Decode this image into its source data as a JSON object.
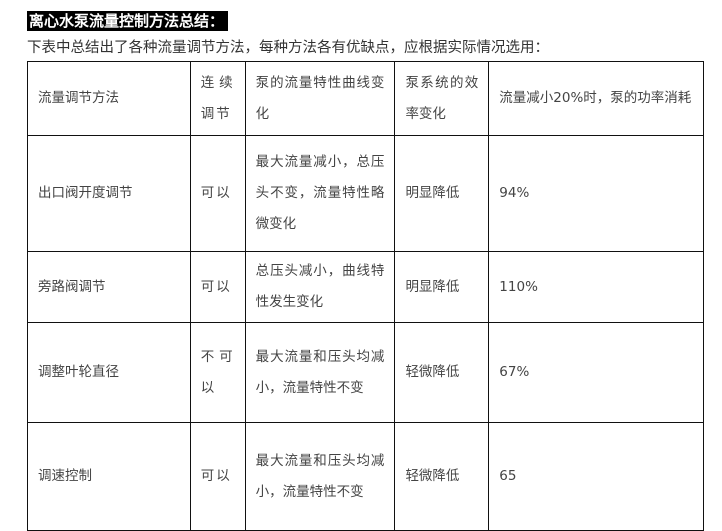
{
  "title": "离心水泵流量控制方法总结：",
  "intro": "下表中总结出了各种流量调节方法，每种方法各有优缺点，应根据实际情况选用：",
  "table": {
    "headers": [
      "流量调节方法",
      "连续调节",
      "泵的流量特性曲线变化",
      "泵系统的效率变化",
      "流量减小20%时，泵的功率消耗"
    ],
    "rows": [
      [
        "出口阀开度调节",
        "可以",
        "最大流量减小，总压头不变，流量特性略微变化",
        "明显降低",
        "94%"
      ],
      [
        "旁路阀调节",
        "可以",
        "总压头减小，曲线特性发生变化",
        "明显降低",
        "110%"
      ],
      [
        "调整叶轮直径",
        "不可以",
        "最大流量和压头均减小，流量特性不变",
        "轻微降低",
        "67%"
      ],
      [
        "调速控制",
        "可以",
        "最大流量和压头均减小，流量特性不变",
        "轻微降低",
        "65"
      ]
    ]
  }
}
